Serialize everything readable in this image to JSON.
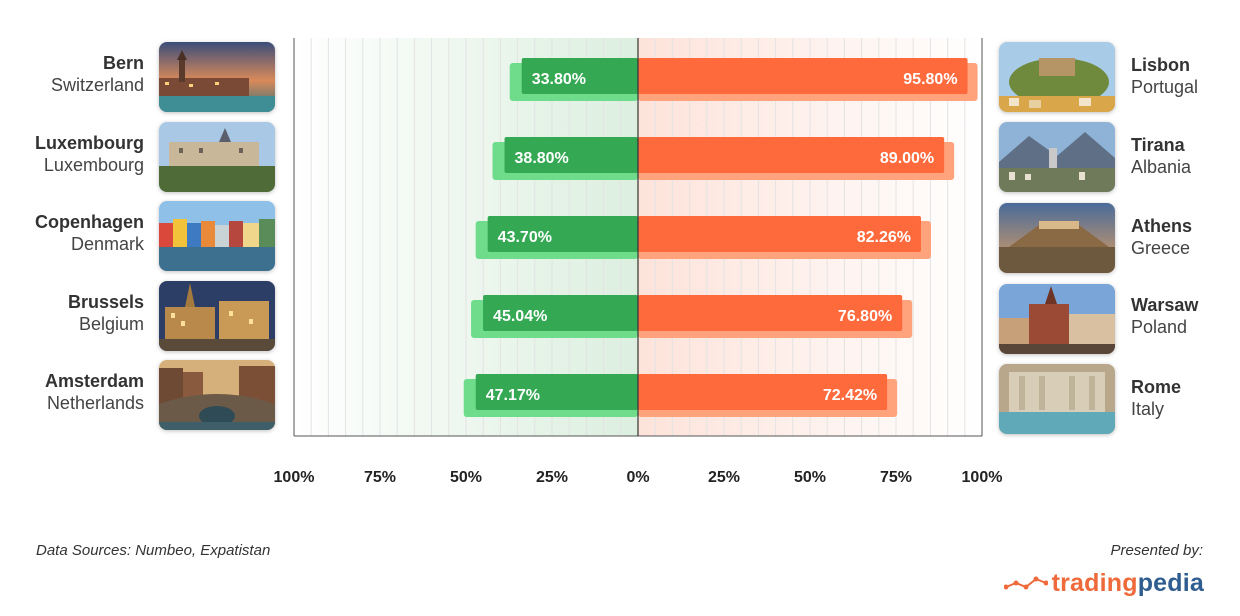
{
  "left_cities": [
    {
      "city": "Bern",
      "country": "Switzerland",
      "icon": "bern-photo"
    },
    {
      "city": "Luxembourg",
      "country": "Luxembourg",
      "icon": "luxembourg-photo"
    },
    {
      "city": "Copenhagen",
      "country": "Denmark",
      "icon": "copenhagen-photo"
    },
    {
      "city": "Brussels",
      "country": "Belgium",
      "icon": "brussels-photo"
    },
    {
      "city": "Amsterdam",
      "country": "Netherlands",
      "icon": "amsterdam-photo"
    }
  ],
  "right_cities": [
    {
      "city": "Lisbon",
      "country": "Portugal",
      "icon": "lisbon-photo"
    },
    {
      "city": "Tirana",
      "country": "Albania",
      "icon": "tirana-photo"
    },
    {
      "city": "Athens",
      "country": "Greece",
      "icon": "athens-photo"
    },
    {
      "city": "Warsaw",
      "country": "Poland",
      "icon": "warsaw-photo"
    },
    {
      "city": "Rome",
      "country": "Italy",
      "icon": "rome-photo"
    }
  ],
  "chart_data": {
    "type": "bar",
    "orientation": "horizontal-diverging",
    "rows": 5,
    "series": [
      {
        "side": "left",
        "values": [
          33.8,
          38.8,
          43.7,
          45.04,
          47.17
        ],
        "labels": [
          "33.80%",
          "38.80%",
          "43.70%",
          "45.04%",
          "47.17%"
        ],
        "color": "#34a853",
        "shadow_color": "#6fdc8c"
      },
      {
        "side": "right",
        "values": [
          95.8,
          89.0,
          82.26,
          76.8,
          72.42
        ],
        "labels": [
          "95.80%",
          "89.00%",
          "82.26%",
          "76.80%",
          "72.42%"
        ],
        "color": "#ff6a3d",
        "shadow_color": "#ffa37c"
      }
    ],
    "xlim": [
      -100,
      100
    ],
    "tick_values": [
      -100,
      -75,
      -50,
      -25,
      0,
      25,
      50,
      75,
      100
    ],
    "tick_labels": [
      "100%",
      "75%",
      "50%",
      "25%",
      "0%",
      "25%",
      "50%",
      "75%",
      "100%"
    ],
    "grid": true
  },
  "footer": {
    "source": "Data Sources: Numbeo, Expatistan",
    "presented_by": "Presented by:",
    "logo_part1": "trading",
    "logo_part2": "pedia"
  },
  "colors": {
    "green": "#34a853",
    "orange": "#ff6a3d",
    "logo_orange": "#ee6a3a",
    "logo_blue": "#2f5d8f"
  }
}
